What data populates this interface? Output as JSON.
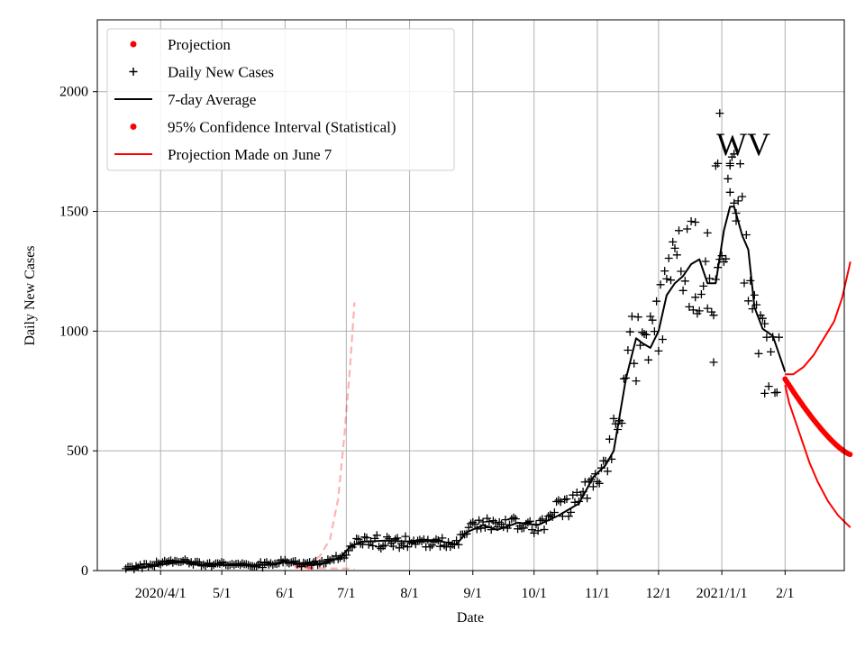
{
  "chart_data": {
    "type": "line",
    "annotation": "WV",
    "xlabel": "Date",
    "ylabel": "Daily New Cases",
    "ylim": [
      0,
      2300
    ],
    "xlim": [
      -31,
      335
    ],
    "y_ticks": [
      0,
      500,
      1000,
      1500,
      2000
    ],
    "x_ticks": [
      {
        "label": "2020/4/1",
        "day": 0
      },
      {
        "label": "5/1",
        "day": 30
      },
      {
        "label": "6/1",
        "day": 61
      },
      {
        "label": "7/1",
        "day": 91
      },
      {
        "label": "8/1",
        "day": 122
      },
      {
        "label": "9/1",
        "day": 153
      },
      {
        "label": "10/1",
        "day": 183
      },
      {
        "label": "11/1",
        "day": 214
      },
      {
        "label": "12/1",
        "day": 244
      },
      {
        "label": "2021/1/1",
        "day": 275
      },
      {
        "label": "2/1",
        "day": 306
      }
    ],
    "grid": true,
    "legend_position": "top-left",
    "legend": [
      {
        "label": "Projection",
        "marker": "dot",
        "color": "#ff0000"
      },
      {
        "label": "Daily New Cases",
        "marker": "plus",
        "color": "#000000"
      },
      {
        "label": "7-day Average",
        "marker": "line",
        "color": "#000000"
      },
      {
        "label": "95% Confidence Interval (Statistical)",
        "marker": "dot",
        "color": "#ff0000"
      },
      {
        "label": "Projection Made on June 7",
        "marker": "line",
        "color": "#ff0000"
      }
    ],
    "daily_cases_keypoints": [
      [
        -17,
        5
      ],
      [
        0,
        30
      ],
      [
        10,
        40
      ],
      [
        20,
        25
      ],
      [
        40,
        25
      ],
      [
        55,
        25
      ],
      [
        60,
        45
      ],
      [
        70,
        25
      ],
      [
        80,
        35
      ],
      [
        90,
        60
      ],
      [
        95,
        120
      ],
      [
        105,
        120
      ],
      [
        120,
        120
      ],
      [
        130,
        120
      ],
      [
        145,
        110
      ],
      [
        150,
        180
      ],
      [
        160,
        190
      ],
      [
        170,
        210
      ],
      [
        180,
        190
      ],
      [
        190,
        200
      ],
      [
        195,
        260
      ],
      [
        205,
        290
      ],
      [
        210,
        350
      ],
      [
        215,
        420
      ],
      [
        220,
        500
      ],
      [
        225,
        650
      ],
      [
        230,
        900
      ],
      [
        235,
        950
      ],
      [
        240,
        950
      ],
      [
        245,
        1100
      ],
      [
        250,
        1200
      ],
      [
        255,
        1250
      ],
      [
        260,
        1300
      ],
      [
        265,
        1200
      ],
      [
        270,
        1250
      ],
      [
        275,
        1300
      ],
      [
        280,
        1600
      ],
      [
        283,
        1500
      ],
      [
        288,
        1300
      ],
      [
        293,
        1000
      ],
      [
        298,
        900
      ],
      [
        303,
        850
      ]
    ],
    "daily_cases_outliers": [
      [
        274,
        1910
      ],
      [
        281,
        1740
      ],
      [
        279,
        1700
      ],
      [
        273,
        1700
      ],
      [
        272,
        1690
      ],
      [
        279,
        1580
      ],
      [
        262,
        1455
      ],
      [
        268,
        1410
      ],
      [
        282,
        1460
      ],
      [
        271,
        870
      ],
      [
        296,
        740
      ]
    ],
    "avg_7day_keypoints": [
      [
        -17,
        5
      ],
      [
        0,
        25
      ],
      [
        10,
        35
      ],
      [
        20,
        25
      ],
      [
        40,
        22
      ],
      [
        55,
        25
      ],
      [
        60,
        40
      ],
      [
        70,
        25
      ],
      [
        80,
        30
      ],
      [
        88,
        55
      ],
      [
        93,
        100
      ],
      [
        98,
        120
      ],
      [
        110,
        125
      ],
      [
        125,
        120
      ],
      [
        135,
        125
      ],
      [
        145,
        110
      ],
      [
        150,
        160
      ],
      [
        158,
        190
      ],
      [
        165,
        170
      ],
      [
        175,
        200
      ],
      [
        185,
        190
      ],
      [
        195,
        230
      ],
      [
        205,
        280
      ],
      [
        212,
        390
      ],
      [
        218,
        440
      ],
      [
        222,
        500
      ],
      [
        228,
        800
      ],
      [
        233,
        970
      ],
      [
        236,
        950
      ],
      [
        240,
        930
      ],
      [
        244,
        1000
      ],
      [
        248,
        1150
      ],
      [
        252,
        1200
      ],
      [
        256,
        1230
      ],
      [
        260,
        1280
      ],
      [
        264,
        1300
      ],
      [
        268,
        1200
      ],
      [
        272,
        1200
      ],
      [
        276,
        1420
      ],
      [
        279,
        1520
      ],
      [
        281,
        1520
      ],
      [
        285,
        1400
      ],
      [
        288,
        1340
      ],
      [
        291,
        1100
      ],
      [
        295,
        1010
      ],
      [
        300,
        980
      ],
      [
        304,
        880
      ],
      [
        306,
        830
      ]
    ],
    "projection": {
      "start_day": 306,
      "end_day": 338,
      "start": 800,
      "end": 485
    },
    "ci_upper": [
      [
        306,
        820
      ],
      [
        310,
        820
      ],
      [
        315,
        850
      ],
      [
        320,
        900
      ],
      [
        325,
        970
      ],
      [
        330,
        1040
      ],
      [
        334,
        1140
      ],
      [
        338,
        1290
      ]
    ],
    "ci_lower": [
      [
        306,
        775
      ],
      [
        308,
        700
      ],
      [
        312,
        600
      ],
      [
        318,
        450
      ],
      [
        322,
        370
      ],
      [
        327,
        290
      ],
      [
        332,
        230
      ],
      [
        338,
        180
      ]
    ],
    "june7_projection": {
      "upper": [
        [
          66,
          10
        ],
        [
          72,
          25
        ],
        [
          78,
          60
        ],
        [
          83,
          130
        ],
        [
          87,
          300
        ],
        [
          90,
          560
        ],
        [
          93,
          870
        ],
        [
          95,
          1120
        ]
      ],
      "lower": [
        [
          66,
          15
        ],
        [
          72,
          10
        ],
        [
          95,
          8
        ]
      ]
    }
  }
}
